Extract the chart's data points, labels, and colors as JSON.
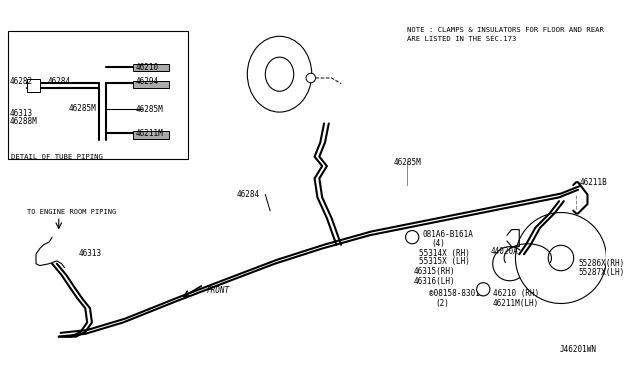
{
  "bg_color": "#ffffff",
  "line_color": "#000000",
  "note_line1": "NOTE : CLAMPS & INSULATORS FOR FLOOR AND REAR",
  "note_line2": "ARE LISTED IN THE SEC.173",
  "diagram_id": "J46201WN",
  "detail_box_label": "DETAIL OF TUBE PIPING"
}
